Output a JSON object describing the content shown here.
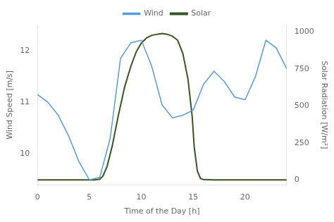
{
  "chart_data": {
    "type": "line",
    "xlabel": "Time of the Day [h]",
    "ylabel": "Wind Speed [m/s]",
    "y2label": "Solar Radiation [W/m²]",
    "xlim": [
      0,
      24
    ],
    "xticks": [
      0,
      5,
      10,
      15,
      20
    ],
    "ylim": [
      9.4,
      12.5
    ],
    "yticks": [
      10,
      11,
      12
    ],
    "y2lim": [
      -35,
      1050
    ],
    "y2ticks": [
      0,
      250,
      500,
      750,
      1000
    ],
    "grid": false,
    "legend": "top",
    "series": [
      {
        "name": "Wind",
        "color": "#5b9bd5",
        "axis": "y",
        "x": [
          0,
          1,
          2,
          3,
          4,
          5,
          6,
          7,
          8,
          9,
          10,
          11,
          12,
          13,
          14,
          15,
          16,
          17,
          18,
          19,
          20,
          21,
          22,
          23,
          24
        ],
        "values": [
          11.15,
          11.0,
          10.75,
          10.35,
          9.85,
          9.5,
          9.55,
          10.3,
          11.85,
          12.15,
          12.2,
          11.7,
          10.95,
          10.7,
          10.75,
          10.85,
          11.35,
          11.6,
          11.4,
          11.1,
          11.05,
          11.5,
          12.2,
          12.05,
          11.65
        ]
      },
      {
        "name": "Solar",
        "color": "#375623",
        "axis": "y2",
        "x": [
          0,
          1,
          2,
          3,
          4,
          5,
          5.5,
          6,
          6.3,
          6.7,
          7.2,
          7.8,
          8.4,
          9,
          9.5,
          10,
          10.5,
          11,
          11.5,
          12,
          12.5,
          13,
          13.5,
          14,
          14.5,
          14.9,
          15.1,
          15.4,
          15.7,
          16,
          17,
          18,
          19,
          20,
          21,
          22,
          23,
          24
        ],
        "values": [
          0,
          0,
          0,
          0,
          0,
          0,
          0,
          5,
          25,
          90,
          230,
          440,
          630,
          770,
          865,
          925,
          960,
          978,
          985,
          990,
          985,
          972,
          945,
          855,
          680,
          430,
          220,
          60,
          10,
          2,
          0,
          0,
          0,
          0,
          0,
          0,
          0,
          0
        ]
      }
    ]
  }
}
